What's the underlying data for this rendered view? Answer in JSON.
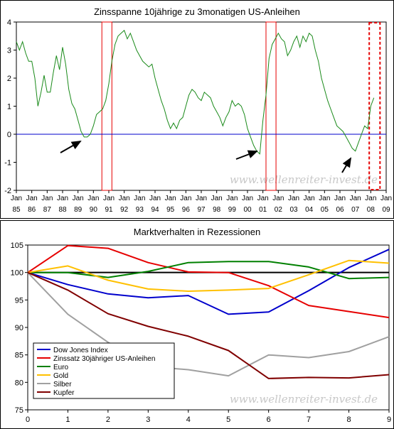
{
  "chart_data": [
    {
      "type": "line",
      "title": "Zinsspanne 10jährige zu 3monatigen US-Anleihen",
      "watermark": "www.wellenreiter-invest.de",
      "ylim": [
        -2,
        4
      ],
      "yticks": [
        "4",
        "3",
        "2",
        "1",
        "0",
        "-1",
        "-2"
      ],
      "xlim": [
        1985.0,
        2009.0
      ],
      "xticks": [
        "85",
        "86",
        "87",
        "88",
        "89",
        "90",
        "91",
        "92",
        "93",
        "94",
        "95",
        "96",
        "97",
        "98",
        "99",
        "00",
        "01",
        "02",
        "03",
        "04",
        "05",
        "06",
        "07",
        "08",
        "09"
      ],
      "xtick_prefix": "Jan",
      "zero_line": 0,
      "grid": false,
      "series": [
        {
          "color": "#1a8a1a",
          "x": [
            1985.0,
            1985.2,
            1985.4,
            1985.6,
            1985.8,
            1986.0,
            1986.2,
            1986.4,
            1986.6,
            1986.8,
            1987.0,
            1987.2,
            1987.4,
            1987.6,
            1987.8,
            1988.0,
            1988.2,
            1988.4,
            1988.6,
            1988.8,
            1989.0,
            1989.2,
            1989.4,
            1989.6,
            1989.8,
            1990.0,
            1990.2,
            1990.4,
            1990.6,
            1990.8,
            1991.0,
            1991.2,
            1991.4,
            1991.6,
            1991.8,
            1992.0,
            1992.2,
            1992.4,
            1992.6,
            1992.8,
            1993.0,
            1993.2,
            1993.4,
            1993.6,
            1993.8,
            1994.0,
            1994.2,
            1994.4,
            1994.6,
            1994.8,
            1995.0,
            1995.2,
            1995.4,
            1995.6,
            1995.8,
            1996.0,
            1996.2,
            1996.4,
            1996.6,
            1996.8,
            1997.0,
            1997.2,
            1997.4,
            1997.6,
            1997.8,
            1998.0,
            1998.2,
            1998.4,
            1998.6,
            1998.8,
            1999.0,
            1999.2,
            1999.4,
            1999.6,
            1999.8,
            2000.0,
            2000.2,
            2000.4,
            2000.6,
            2000.8,
            2001.0,
            2001.2,
            2001.4,
            2001.6,
            2001.8,
            2002.0,
            2002.2,
            2002.4,
            2002.6,
            2002.8,
            2003.0,
            2003.2,
            2003.4,
            2003.6,
            2003.8,
            2004.0,
            2004.2,
            2004.4,
            2004.6,
            2004.8,
            2005.0,
            2005.2,
            2005.4,
            2005.6,
            2005.8,
            2006.0,
            2006.2,
            2006.4,
            2006.6,
            2006.8,
            2007.0,
            2007.2,
            2007.4,
            2007.6,
            2007.8,
            2008.0,
            2008.2
          ],
          "y": [
            3.3,
            3.0,
            3.3,
            2.9,
            2.6,
            2.6,
            2.0,
            1.0,
            1.5,
            2.1,
            1.5,
            1.5,
            2.2,
            2.8,
            2.3,
            3.1,
            2.5,
            1.6,
            1.1,
            0.9,
            0.5,
            0.1,
            -0.1,
            -0.1,
            0.0,
            0.3,
            0.7,
            0.8,
            0.9,
            1.2,
            1.8,
            2.6,
            3.2,
            3.5,
            3.6,
            3.7,
            3.4,
            3.6,
            3.3,
            3.0,
            2.8,
            2.6,
            2.5,
            2.4,
            2.5,
            2.0,
            1.6,
            1.2,
            0.9,
            0.5,
            0.2,
            0.4,
            0.2,
            0.5,
            0.6,
            1.0,
            1.4,
            1.6,
            1.5,
            1.3,
            1.2,
            1.5,
            1.4,
            1.3,
            1.0,
            0.8,
            0.6,
            0.3,
            0.6,
            0.8,
            1.2,
            1.0,
            1.1,
            1.0,
            0.7,
            0.2,
            -0.1,
            -0.4,
            -0.6,
            -0.7,
            0.5,
            1.4,
            2.7,
            3.2,
            3.4,
            3.6,
            3.4,
            3.3,
            2.8,
            3.0,
            3.3,
            3.5,
            3.1,
            3.5,
            3.3,
            3.6,
            3.5,
            3.0,
            2.6,
            2.0,
            1.6,
            1.2,
            0.9,
            0.6,
            0.3,
            0.2,
            0.1,
            -0.1,
            -0.3,
            -0.5,
            -0.6,
            -0.3,
            0.0,
            0.3,
            0.2,
            1.0,
            1.3
          ],
          "markers": []
        }
      ],
      "recession_bands": [
        [
          1990.55,
          1991.2
        ],
        [
          2001.2,
          2001.85
        ]
      ],
      "forecast_band": [
        2007.9,
        2008.6
      ]
    },
    {
      "type": "line",
      "title": "Marktverhalten in Rezessionen",
      "watermark": "www.wellenreiter-invest.de",
      "categories": [
        0,
        1,
        2,
        3,
        4,
        5,
        6,
        7,
        8,
        9
      ],
      "ylim": [
        75,
        105
      ],
      "yticks": [
        "105",
        "100",
        "95",
        "90",
        "85",
        "80",
        "75"
      ],
      "xticks": [
        "0",
        "1",
        "2",
        "3",
        "4",
        "5",
        "6",
        "7",
        "8",
        "9"
      ],
      "reference_line": 100,
      "legend_position": "bottom-left",
      "grid": false,
      "series": [
        {
          "name": "Dow Jones Index",
          "color": "#0000cc",
          "values": [
            100,
            97.8,
            96.1,
            95.4,
            95.8,
            92.4,
            92.8,
            96.7,
            100.9,
            104.2
          ]
        },
        {
          "name": "Zinssatz 30jähriger US-Anleihen",
          "color": "#e60000",
          "values": [
            100,
            104.9,
            104.4,
            101.8,
            100.1,
            100.0,
            97.6,
            94.0,
            92.9,
            91.8
          ]
        },
        {
          "name": "Euro",
          "color": "#008000",
          "values": [
            100,
            100.0,
            99.1,
            100.2,
            101.8,
            102.0,
            102.0,
            101.0,
            98.9,
            99.1
          ]
        },
        {
          "name": "Gold",
          "color": "#ffc000",
          "values": [
            100,
            101.2,
            98.6,
            97.0,
            96.6,
            96.8,
            97.1,
            99.6,
            102.2,
            101.7
          ]
        },
        {
          "name": "Silber",
          "color": "#a0a0a0",
          "values": [
            100,
            92.4,
            87.3,
            82.9,
            82.3,
            81.2,
            85.0,
            84.5,
            85.6,
            88.3
          ]
        },
        {
          "name": "Kupfer",
          "color": "#800000",
          "values": [
            100,
            96.8,
            92.5,
            90.2,
            88.4,
            85.8,
            80.7,
            80.9,
            80.8,
            81.4
          ]
        }
      ]
    }
  ],
  "colors": {
    "zero_line": "#0000cc",
    "arrow": "#000000",
    "recession": "#e60000",
    "axis": "#000000",
    "watermark": "#c8c8c8"
  }
}
